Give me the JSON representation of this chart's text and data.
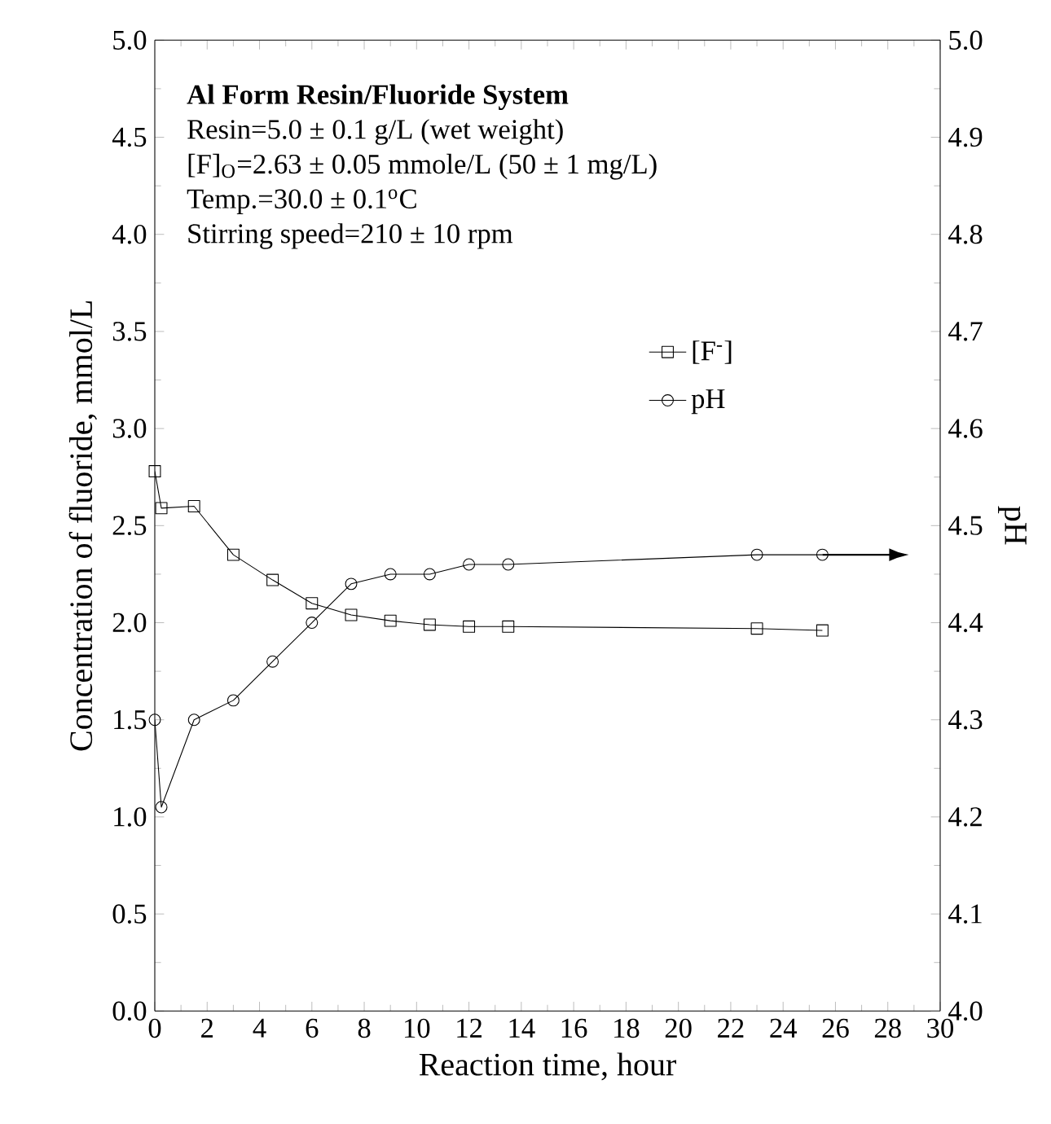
{
  "chart_data": {
    "type": "line",
    "title": "Al Form Resin/Fluoride System",
    "annotations": [
      "Resin=5.0 ± 0.1 g/L (wet weight)",
      "[F]$_{O}$=2.63 ± 0.05 mmole/L (50 ± 1 mg/L)",
      "Temp.=30.0 ± 0.1$^{o}$C",
      "Stirring speed=210 ± 10 rpm"
    ],
    "xlabel": "Reaction time, hour",
    "ylabel": "Concentration of fluoride, mmol/L",
    "y2label": "pH",
    "x": [
      0,
      0.25,
      1.5,
      3.0,
      4.5,
      6.0,
      7.5,
      9.0,
      10.5,
      12.0,
      13.5,
      23.0,
      25.5
    ],
    "series": [
      {
        "name": "[F$^{-}$]",
        "color": "#000000",
        "marker": "square",
        "values": [
          2.78,
          2.59,
          2.6,
          2.35,
          2.22,
          2.1,
          2.04,
          2.01,
          1.99,
          1.98,
          1.98,
          1.97,
          1.96
        ]
      },
      {
        "name": "pH",
        "color": "#000000",
        "marker": "circle",
        "axis": "y2",
        "values": [
          4.3,
          4.21,
          4.3,
          4.32,
          4.36,
          4.4,
          4.44,
          4.45,
          4.45,
          4.46,
          4.46,
          4.47,
          4.47
        ]
      }
    ],
    "xlim": [
      0,
      30
    ],
    "xticks": [
      0,
      2,
      4,
      6,
      8,
      10,
      12,
      14,
      16,
      18,
      20,
      22,
      24,
      26,
      28,
      30
    ],
    "ylim": [
      0,
      5
    ],
    "yticks": [
      {
        "value": 0,
        "label": "0.0"
      },
      {
        "value": 0.5,
        "label": "0.5"
      },
      {
        "value": 1,
        "label": "1.0"
      },
      {
        "value": 1.5,
        "label": "1.5"
      },
      {
        "value": 2,
        "label": "2.0"
      },
      {
        "value": 2.5,
        "label": "2.5"
      },
      {
        "value": 3,
        "label": "3.0"
      },
      {
        "value": 3.5,
        "label": "3.5"
      },
      {
        "value": 4,
        "label": "4.0"
      },
      {
        "value": 4.5,
        "label": "4.5"
      },
      {
        "value": 5,
        "label": "5.0"
      }
    ],
    "y2lim": [
      4,
      5
    ],
    "y2ticks": [
      {
        "value": 4,
        "label": "4.0"
      },
      {
        "value": 4.1,
        "label": "4.1"
      },
      {
        "value": 4.2,
        "label": "4.2"
      },
      {
        "value": 4.3,
        "label": "4.3"
      },
      {
        "value": 4.4,
        "label": "4.4"
      },
      {
        "value": 4.5,
        "label": "4.5"
      },
      {
        "value": 4.6,
        "label": "4.6"
      },
      {
        "value": 4.7,
        "label": "4.7"
      },
      {
        "value": 4.8,
        "label": "4.8"
      },
      {
        "value": 4.9,
        "label": "4.9"
      },
      {
        "value": 5,
        "label": "5.0"
      }
    ],
    "legend": "right",
    "grid": false,
    "line_style": "solid"
  }
}
